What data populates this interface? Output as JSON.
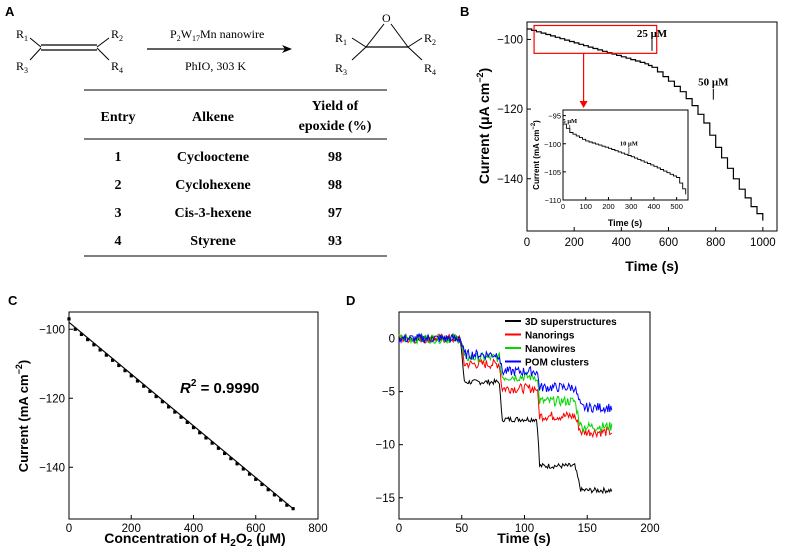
{
  "panel_a": {
    "label": "A",
    "reactant": {
      "r1": "R",
      "r1_sub": "1",
      "r2": "R",
      "r2_sub": "2",
      "r3": "R",
      "r3_sub": "3",
      "r4": "R",
      "r4_sub": "4"
    },
    "product": {
      "o": "O",
      "r1": "R",
      "r1_sub": "1",
      "r2": "R",
      "r2_sub": "2",
      "r3": "R",
      "r3_sub": "3",
      "r4": "R",
      "r4_sub": "4"
    },
    "catalyst": {
      "p": "P",
      "p_sub": "2",
      "w": "W",
      "w_sub": "17",
      "rest": "Mn nanowire"
    },
    "conditions": "PhIO, 303 K",
    "table": {
      "headers": [
        "Entry",
        "Alkene",
        "Yield of",
        "epoxide (%)"
      ],
      "rows": [
        {
          "entry": "1",
          "alkene": "Cyclooctene",
          "yield": "98"
        },
        {
          "entry": "2",
          "alkene": "Cyclohexene",
          "yield": "98"
        },
        {
          "entry": "3",
          "alkene": "Cis-3-hexene",
          "yield": "97"
        },
        {
          "entry": "4",
          "alkene": "Styrene",
          "yield": "93"
        }
      ]
    }
  },
  "chart_data": [
    {
      "panel": "B",
      "type": "line",
      "xlabel": "Time (s)",
      "ylabel_main": "Current (",
      "ylabel_unit": "μA cm",
      "ylabel_exp": "−2",
      "ylabel_close": ")",
      "xlim": [
        0,
        1060
      ],
      "ylim": [
        -155,
        -95
      ],
      "xticks": [
        0,
        200,
        400,
        600,
        800,
        1000
      ],
      "yticks": [
        -100,
        -120,
        -140
      ],
      "annotations": [
        {
          "text": "25 μM",
          "x": 530,
          "y": -101
        },
        {
          "text": "50 μM",
          "x": 790,
          "y": -115
        }
      ],
      "x": [
        0,
        100,
        200,
        300,
        400,
        500,
        530,
        600,
        650,
        700,
        750,
        800,
        850,
        900,
        950,
        1000
      ],
      "y": [
        -97,
        -99,
        -101,
        -103,
        -105,
        -107,
        -108,
        -112,
        -115,
        -119,
        -124,
        -131,
        -137,
        -143,
        -148,
        -152
      ],
      "highlight_box": {
        "x0": 30,
        "x1": 550,
        "y0": -96,
        "y1": -104
      },
      "inset": {
        "type": "line",
        "xlabel": "Time (s)",
        "ylabel": "Current (mA cm",
        "ylabel_exp": "−2",
        "ylabel_close": ")",
        "xlim": [
          0,
          550
        ],
        "ylim": [
          -110,
          -94
        ],
        "xticks": [
          0,
          100,
          200,
          300,
          400,
          500
        ],
        "yticks": [
          -95,
          -100,
          -105,
          -110
        ],
        "annotations": [
          {
            "text": "5 μM",
            "x": 30,
            "y": -97
          },
          {
            "text": "10 μM",
            "x": 290,
            "y": -101
          }
        ],
        "x": [
          0,
          30,
          100,
          200,
          300,
          400,
          500,
          540
        ],
        "y": [
          -96.5,
          -98,
          -99.5,
          -100.8,
          -102.3,
          -104,
          -106,
          -109
        ]
      }
    },
    {
      "panel": "C",
      "type": "scatter",
      "xlabel_main": "Concentration of H",
      "xlabel_sub1": "2",
      "xlabel_mid": "O",
      "xlabel_sub2": "2",
      "xlabel_unit": " (μM)",
      "ylabel": "Current (mA cm",
      "ylabel_exp": "−2",
      "ylabel_close": ")",
      "xlim": [
        0,
        800
      ],
      "ylim": [
        -155,
        -95
      ],
      "xticks": [
        0,
        200,
        400,
        600,
        800
      ],
      "yticks": [
        -100,
        -120,
        -140
      ],
      "r2_label": "R",
      "r2_exp": "2",
      "r2_value": " = 0.9990",
      "fit_line": {
        "x": [
          0,
          720
        ],
        "y": [
          -98,
          -152
        ]
      },
      "points_x": [
        0,
        20,
        40,
        60,
        80,
        100,
        120,
        140,
        160,
        180,
        200,
        220,
        240,
        260,
        280,
        300,
        320,
        340,
        360,
        380,
        400,
        420,
        440,
        460,
        480,
        500,
        520,
        540,
        560,
        580,
        600,
        620,
        640,
        660,
        680,
        700,
        720
      ],
      "points_y": [
        -97,
        -100,
        -101.5,
        -103,
        -104.5,
        -106,
        -107.5,
        -109,
        -110.5,
        -112,
        -113.5,
        -115,
        -116.5,
        -118,
        -119.5,
        -121,
        -122.5,
        -124,
        -125.5,
        -127,
        -128.5,
        -130,
        -131.5,
        -133,
        -134.5,
        -136,
        -137.5,
        -139,
        -140.5,
        -142,
        -143.5,
        -145,
        -146.5,
        -148,
        -149.5,
        -151,
        -152
      ]
    },
    {
      "panel": "D",
      "type": "line",
      "xlabel": "Time (s)",
      "ylabel": "",
      "xlim": [
        0,
        200
      ],
      "ylim": [
        -17,
        2.5
      ],
      "xticks": [
        0,
        50,
        100,
        150,
        200
      ],
      "yticks": [
        0,
        -5,
        -10,
        -15
      ],
      "legend_position": "top-right",
      "series": [
        {
          "name": "3D superstructures",
          "color": "#000000",
          "x": [
            0,
            49,
            52,
            80,
            82,
            110,
            112,
            140,
            145,
            170
          ],
          "y": [
            0,
            0,
            -4.1,
            -4.1,
            -7.6,
            -7.6,
            -12,
            -12,
            -14.3,
            -14.3
          ]
        },
        {
          "name": "Nanorings",
          "color": "#ff0000",
          "x": [
            0,
            49,
            52,
            80,
            82,
            110,
            112,
            140,
            145,
            170
          ],
          "y": [
            0,
            0,
            -2.4,
            -2.4,
            -4.7,
            -4.7,
            -7.3,
            -7.3,
            -8.8,
            -8.8
          ]
        },
        {
          "name": "Nanowires",
          "color": "#00d800",
          "x": [
            0,
            49,
            52,
            80,
            82,
            110,
            112,
            140,
            145,
            170
          ],
          "y": [
            0,
            0,
            -1.8,
            -1.8,
            -3.6,
            -3.6,
            -5.9,
            -5.9,
            -8.3,
            -8.3
          ]
        },
        {
          "name": "POM clusters",
          "color": "#0000ff",
          "x": [
            0,
            49,
            52,
            80,
            82,
            110,
            112,
            140,
            145,
            170
          ],
          "y": [
            0,
            0,
            -1.5,
            -1.5,
            -3.1,
            -3.1,
            -4.6,
            -4.6,
            -6.5,
            -6.5
          ]
        }
      ]
    }
  ]
}
